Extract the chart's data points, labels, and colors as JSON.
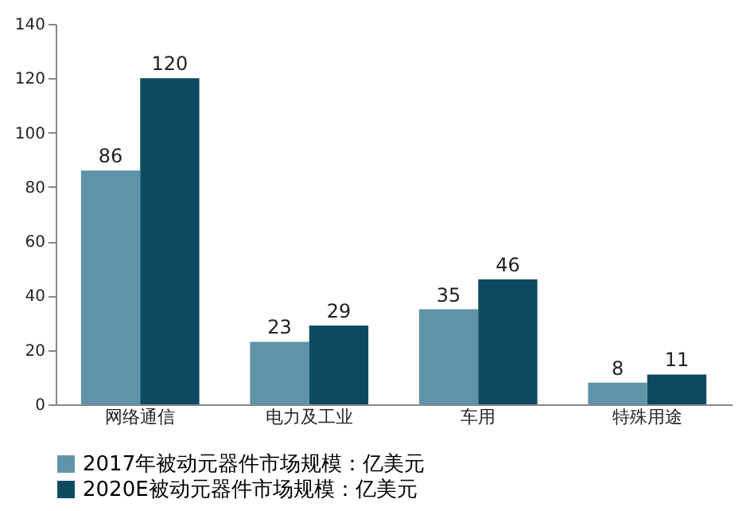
{
  "chart_data": {
    "type": "bar",
    "categories": [
      "网络通信",
      "电力及工业",
      "车用",
      "特殊用途"
    ],
    "series": [
      {
        "name": "2017年被动元器件市场规模：亿美元",
        "color": "#5e93aa",
        "values": [
          86,
          23,
          35,
          8
        ]
      },
      {
        "name": "2020E被动元器件市场规模：亿美元",
        "color": "#0d4a62",
        "values": [
          120,
          29,
          46,
          11
        ]
      }
    ],
    "ylim": [
      0,
      140
    ],
    "yticks": [
      0,
      20,
      40,
      60,
      80,
      100,
      120,
      140
    ],
    "data_labels": true,
    "legend": "bottom",
    "grid": false
  }
}
